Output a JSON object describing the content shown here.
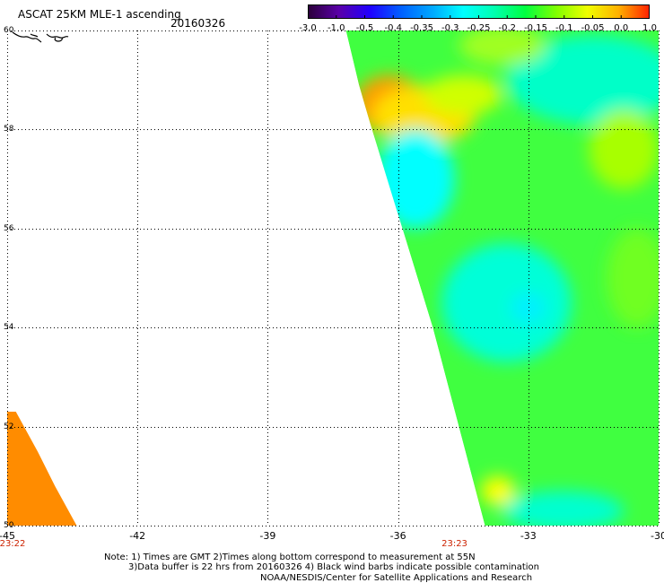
{
  "title": "ASCAT 25KM MLE-1 ascending",
  "date": "20160326",
  "colorbar": {
    "labels": [
      "-3.0",
      "-1.0",
      "-0.5",
      "-0.4",
      "-0.35",
      "-0.3",
      "-0.25",
      "-0.2",
      "-0.15",
      "-0.1",
      "-0.05",
      "0.0",
      "1.0"
    ],
    "colors": [
      "#2a0038",
      "#5a00a8",
      "#2000ff",
      "#0060ff",
      "#00a8ff",
      "#00ffff",
      "#00ffb0",
      "#00ff40",
      "#80ff00",
      "#f0ff00",
      "#ffb000",
      "#ff2000"
    ]
  },
  "axes": {
    "lat_labels": [
      "60",
      "58",
      "56",
      "54",
      "52",
      "50"
    ],
    "lon_labels": [
      "-45",
      "-42",
      "-39",
      "-36",
      "-33",
      "-30"
    ],
    "lat_range": [
      50,
      60
    ],
    "lon_range": [
      -45,
      -30
    ],
    "grid": "dotted"
  },
  "times": [
    {
      "label": "23:22",
      "lon": -45
    },
    {
      "label": "23:23",
      "lon": -34.7
    }
  ],
  "notes": [
    "Note: 1) Times are GMT 2)Times along bottom correspond to measurement at 55N",
    "3)Data buffer is 22 hrs from 20160326 4) Black wind barbs indicate possible contamination",
    "NOAA/NESDIS/Center for Satellite Applications and Research"
  ],
  "swath": {
    "main_left_edge": [
      {
        "lat": 60.0,
        "lon": -37.2
      },
      {
        "lat": 58.9,
        "lon": -36.9
      },
      {
        "lat": 58.0,
        "lon": -36.6
      },
      {
        "lat": 56.0,
        "lon": -35.9
      },
      {
        "lat": 54.0,
        "lon": -35.2
      },
      {
        "lat": 52.0,
        "lon": -34.6
      },
      {
        "lat": 50.0,
        "lon": -34.0
      }
    ],
    "west_patch_edge": [
      {
        "lat": 52.3,
        "lon": -45.0
      },
      {
        "lat": 52.3,
        "lon": -44.8
      },
      {
        "lat": 51.5,
        "lon": -44.3
      },
      {
        "lat": 50.8,
        "lon": -43.9
      },
      {
        "lat": 50.0,
        "lon": -43.4
      }
    ],
    "west_patch_color": "#ff8c00",
    "base_color": "#40ff40",
    "features": [
      {
        "lat": 58.5,
        "lon": -36.2,
        "r_lat": 0.6,
        "r_lon": 0.8,
        "color": "#ff9a00"
      },
      {
        "lat": 58.3,
        "lon": -35.4,
        "r_lat": 0.6,
        "r_lon": 1.2,
        "color": "#ffe000"
      },
      {
        "lat": 58.7,
        "lon": -34.5,
        "r_lat": 0.4,
        "r_lon": 0.9,
        "color": "#d0ff00"
      },
      {
        "lat": 57.0,
        "lon": -35.6,
        "r_lat": 1.0,
        "r_lon": 0.9,
        "color": "#00ffff"
      },
      {
        "lat": 59.0,
        "lon": -31.5,
        "r_lat": 0.9,
        "r_lon": 2.0,
        "color": "#00ffc8"
      },
      {
        "lat": 54.5,
        "lon": -33.5,
        "r_lat": 1.2,
        "r_lon": 1.5,
        "color": "#00ffd8"
      },
      {
        "lat": 54.4,
        "lon": -33.0,
        "r_lat": 0.3,
        "r_lon": 0.4,
        "color": "#00f0ff"
      },
      {
        "lat": 57.6,
        "lon": -30.8,
        "r_lat": 0.8,
        "r_lon": 0.8,
        "color": "#a8ff00"
      },
      {
        "lat": 59.7,
        "lon": -33.6,
        "r_lat": 0.4,
        "r_lon": 1.0,
        "color": "#a0ff20"
      },
      {
        "lat": 50.7,
        "lon": -33.7,
        "r_lat": 0.3,
        "r_lon": 0.4,
        "color": "#ffff00"
      },
      {
        "lat": 50.3,
        "lon": -32.2,
        "r_lat": 0.4,
        "r_lon": 1.4,
        "color": "#00ffd0"
      },
      {
        "lat": 55.0,
        "lon": -30.5,
        "r_lat": 1.0,
        "r_lon": 0.7,
        "color": "#70ff20"
      }
    ]
  }
}
